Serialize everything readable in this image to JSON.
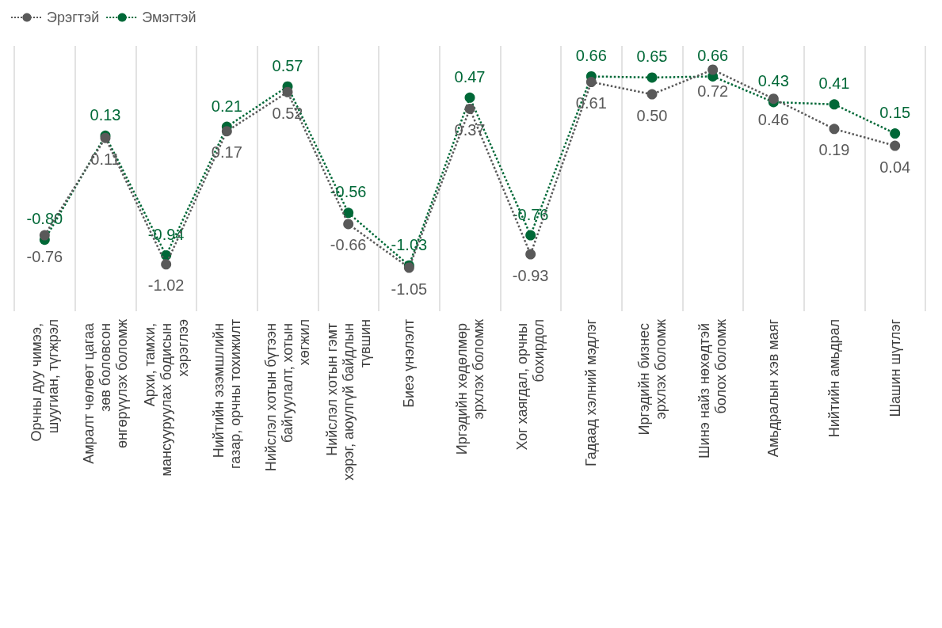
{
  "chart_data": {
    "type": "line",
    "categories": [
      "Орчны дуу чимээ, шуугиан, түгжрэл",
      "Амралт чөлөөт цагаа зөв боловсон өнгөрүүлэх боломж",
      "Архи, тамхи, мансууруулах бодисын хэрэглээ",
      "Нийтийн эзэмшлийн газар, орчны тохижилт",
      "Нийслэл хотын бүтээн байгуулалт, хотын хөгжил",
      "Нийслэл хотын гэмт хэрэг, аюулгүй байдлын түвшин",
      "Биеэ үнэлэлт",
      "Иргэдийн хөдөлмөр эрхлэх боломж",
      "Хог хаягдал, орчны бохирдол",
      "Гадаад хэлний мэдлэг",
      "Иргэдийн бизнес эрхлэх боломж",
      "Шинэ найз нөхөдтэй болох боломж",
      "Амьдралын хэв маяг",
      "Нийтийн амьдрал",
      "Шашин шүтлэг"
    ],
    "series": [
      {
        "name": "Эрэгтэй",
        "color": "#595959",
        "values": [
          -0.76,
          0.11,
          -1.02,
          0.17,
          0.52,
          -0.66,
          -1.05,
          0.37,
          -0.93,
          0.61,
          0.5,
          0.72,
          0.46,
          0.19,
          0.04
        ],
        "value_labels": [
          "-0.76",
          "0.11",
          "-1.02",
          "0.17",
          "0.52",
          "-0.66",
          "-1.05",
          "0.37",
          "-0.93",
          "0.61",
          "0.50",
          "0.72",
          "0.46",
          "0.19",
          "0.04"
        ]
      },
      {
        "name": "Эмэгтэй",
        "color": "#006837",
        "values": [
          -0.8,
          0.13,
          -0.94,
          0.21,
          0.57,
          -0.56,
          -1.03,
          0.47,
          -0.76,
          0.66,
          0.65,
          0.66,
          0.43,
          0.41,
          0.15
        ],
        "value_labels": [
          "-0.80",
          "0.13",
          "-0.94",
          "0.21",
          "0.57",
          "-0.56",
          "-1.03",
          "0.47",
          "-0.76",
          "0.66",
          "0.65",
          "0.66",
          "0.43",
          "0.41",
          "0.15"
        ]
      }
    ],
    "grid": "x",
    "legend": "top left",
    "marker": "circle",
    "line_style": "dotted"
  }
}
